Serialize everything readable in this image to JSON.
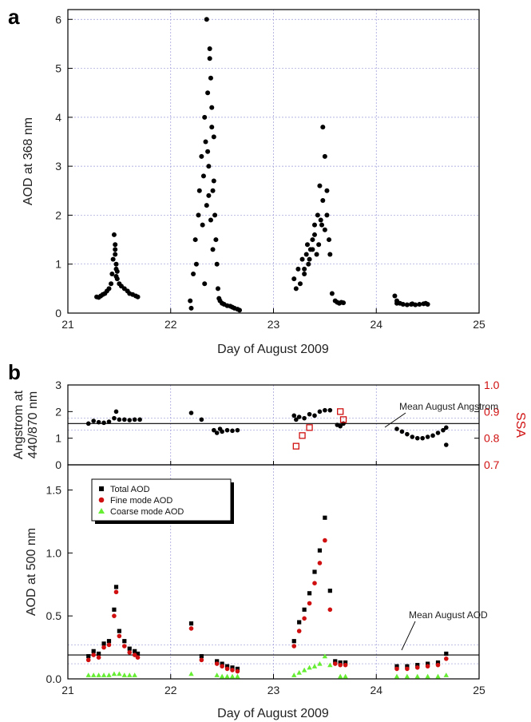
{
  "chart_data": [
    {
      "panel": "a",
      "type": "scatter",
      "xlabel": "Day of August 2009",
      "ylabel": "AOD at 368 nm",
      "xlim": [
        21,
        25
      ],
      "ylim": [
        0,
        6.2
      ],
      "xticks": [
        "21",
        "22",
        "23",
        "24",
        "25"
      ],
      "yticks": [
        "0",
        "1",
        "2",
        "3",
        "4",
        "5",
        "6"
      ],
      "grid": true,
      "series": [
        {
          "color": "#000000",
          "marker": "circle",
          "x": [
            21.28,
            21.3,
            21.32,
            21.34,
            21.36,
            21.38,
            21.4,
            21.42,
            21.43,
            21.44,
            21.45,
            21.46,
            21.47,
            21.48,
            21.5,
            21.52,
            21.55,
            21.58,
            21.6,
            21.63,
            21.66,
            21.68,
            21.46,
            21.47,
            21.47,
            21.46,
            21.48,
            22.19,
            22.2,
            22.22,
            22.24,
            22.25,
            22.27,
            22.28,
            22.3,
            22.31,
            22.32,
            22.33,
            22.34,
            22.35,
            22.36,
            22.37,
            22.38,
            22.39,
            22.4,
            22.41,
            22.42,
            22.43,
            22.44,
            22.45,
            22.46,
            22.35,
            22.38,
            22.4,
            22.36,
            22.42,
            22.39,
            22.37,
            22.41,
            22.33,
            22.47,
            22.48,
            22.5,
            22.52,
            22.55,
            22.58,
            22.6,
            22.62,
            22.65,
            22.67,
            23.2,
            23.22,
            23.24,
            23.26,
            23.28,
            23.3,
            23.32,
            23.34,
            23.36,
            23.38,
            23.4,
            23.42,
            23.44,
            23.46,
            23.48,
            23.5,
            23.52,
            23.54,
            23.3,
            23.35,
            23.4,
            23.45,
            23.5,
            23.33,
            23.43,
            23.48,
            23.52,
            23.38,
            23.47,
            23.55,
            23.57,
            23.6,
            23.62,
            23.64,
            23.66,
            23.68,
            24.18,
            24.2,
            24.23,
            24.26,
            24.3,
            24.34,
            24.38,
            24.42,
            24.46,
            24.5,
            24.2,
            24.35,
            24.48
          ],
          "y": [
            0.33,
            0.32,
            0.35,
            0.38,
            0.4,
            0.45,
            0.5,
            0.6,
            0.8,
            1.1,
            1.6,
            1.3,
            0.9,
            0.7,
            0.6,
            0.55,
            0.5,
            0.45,
            0.4,
            0.38,
            0.35,
            0.33,
            1.4,
            1.0,
            0.75,
            1.2,
            0.85,
            0.25,
            0.1,
            0.8,
            1.5,
            1.0,
            2.0,
            2.5,
            3.2,
            1.8,
            2.8,
            4.0,
            3.5,
            2.2,
            4.5,
            3.0,
            5.4,
            4.8,
            3.8,
            2.5,
            3.6,
            2.0,
            1.5,
            1.0,
            0.5,
            6.0,
            5.2,
            4.2,
            3.3,
            2.7,
            1.9,
            2.4,
            1.3,
            0.6,
            0.3,
            0.25,
            0.2,
            0.18,
            0.15,
            0.14,
            0.12,
            0.1,
            0.08,
            0.06,
            0.7,
            0.5,
            0.9,
            0.6,
            1.1,
            0.8,
            1.2,
            1.0,
            1.3,
            1.5,
            1.6,
            1.2,
            1.4,
            1.9,
            2.3,
            1.7,
            2.0,
            1.5,
            0.9,
            1.1,
            1.8,
            2.6,
            3.2,
            1.4,
            2.0,
            3.8,
            2.5,
            1.3,
            1.8,
            1.2,
            0.4,
            0.25,
            0.22,
            0.2,
            0.22,
            0.21,
            0.35,
            0.25,
            0.2,
            0.18,
            0.17,
            0.18,
            0.17,
            0.18,
            0.19,
            0.18,
            0.2,
            0.19,
            0.2
          ]
        }
      ]
    },
    {
      "panel": "b-top",
      "type": "scatter",
      "ylabel": "Angstrom at 440/870 nm",
      "ylabel_lines": [
        "Angstrom at",
        "440/870 nm"
      ],
      "y2label": "SSA",
      "xlim": [
        21,
        25
      ],
      "ylim": [
        0,
        3
      ],
      "y2lim": [
        0.7,
        1.0
      ],
      "yticks": [
        "0",
        "1",
        "2",
        "3"
      ],
      "y2ticks": [
        "0.7",
        "0.8",
        "0.9",
        "1.0"
      ],
      "annotations": [
        "Mean August Angstrom"
      ],
      "mean_angstrom": 1.55,
      "series": [
        {
          "color": "#000000",
          "marker": "circle",
          "x": [
            21.2,
            21.25,
            21.3,
            21.35,
            21.4,
            21.45,
            21.47,
            21.5,
            21.55,
            21.6,
            21.65,
            21.7,
            22.2,
            22.3,
            22.42,
            22.45,
            22.48,
            22.5,
            22.55,
            22.6,
            22.65,
            23.2,
            23.22,
            23.25,
            23.3,
            23.35,
            23.4,
            23.45,
            23.5,
            23.55,
            23.62,
            23.65,
            23.68,
            24.2,
            24.25,
            24.3,
            24.35,
            24.4,
            24.45,
            24.5,
            24.55,
            24.6,
            24.65,
            24.68,
            24.68
          ],
          "y": [
            1.55,
            1.65,
            1.6,
            1.58,
            1.62,
            1.75,
            2.0,
            1.7,
            1.7,
            1.68,
            1.7,
            1.7,
            1.95,
            1.7,
            1.3,
            1.2,
            1.35,
            1.25,
            1.3,
            1.28,
            1.3,
            1.85,
            1.7,
            1.8,
            1.75,
            1.9,
            1.85,
            2.0,
            2.05,
            2.05,
            1.5,
            1.45,
            1.55,
            1.35,
            1.25,
            1.15,
            1.05,
            1.0,
            1.0,
            1.05,
            1.1,
            1.2,
            1.3,
            1.4,
            0.75
          ]
        },
        {
          "color": "#d01010",
          "marker": "open-square",
          "x": [
            23.22,
            23.28,
            23.35,
            23.65,
            23.68
          ],
          "y2": [
            0.77,
            0.81,
            0.84,
            0.9,
            0.87
          ]
        }
      ]
    },
    {
      "panel": "b-bottom",
      "type": "scatter",
      "xlabel": "Day of August 2009",
      "ylabel": "AOD at 500 nm",
      "xlim": [
        21,
        25
      ],
      "ylim": [
        0,
        1.7
      ],
      "xticks": [
        "21",
        "22",
        "23",
        "24",
        "25"
      ],
      "yticks": [
        "0.0",
        "0.5",
        "1.0",
        "1.5"
      ],
      "annotations": [
        "Mean August AOD"
      ],
      "mean_aod": 0.19,
      "legend_position": "top-left",
      "series": [
        {
          "name": "Total AOD",
          "color": "#000000",
          "marker": "square",
          "x": [
            21.2,
            21.25,
            21.3,
            21.35,
            21.4,
            21.45,
            21.47,
            21.5,
            21.55,
            21.6,
            21.65,
            21.68,
            22.2,
            22.3,
            22.45,
            22.5,
            22.55,
            22.6,
            22.65,
            23.2,
            23.25,
            23.3,
            23.35,
            23.4,
            23.45,
            23.5,
            23.55,
            23.6,
            23.65,
            23.7,
            24.2,
            24.3,
            24.4,
            24.5,
            24.6,
            24.68
          ],
          "y": [
            0.18,
            0.22,
            0.2,
            0.28,
            0.3,
            0.55,
            0.73,
            0.38,
            0.3,
            0.24,
            0.22,
            0.2,
            0.44,
            0.18,
            0.14,
            0.12,
            0.1,
            0.09,
            0.08,
            0.3,
            0.45,
            0.55,
            0.68,
            0.85,
            1.02,
            1.28,
            0.7,
            0.14,
            0.13,
            0.13,
            0.1,
            0.1,
            0.11,
            0.12,
            0.13,
            0.2
          ]
        },
        {
          "name": "Fine mode AOD",
          "color": "#d01010",
          "marker": "circle",
          "x": [
            21.2,
            21.25,
            21.3,
            21.35,
            21.4,
            21.45,
            21.47,
            21.5,
            21.55,
            21.6,
            21.65,
            21.68,
            22.2,
            22.3,
            22.45,
            22.5,
            22.55,
            22.6,
            22.65,
            23.2,
            23.25,
            23.3,
            23.35,
            23.4,
            23.45,
            23.5,
            23.55,
            23.6,
            23.65,
            23.7,
            24.2,
            24.3,
            24.4,
            24.5,
            24.6,
            24.68
          ],
          "y": [
            0.15,
            0.19,
            0.17,
            0.25,
            0.27,
            0.5,
            0.69,
            0.34,
            0.26,
            0.21,
            0.19,
            0.17,
            0.4,
            0.15,
            0.12,
            0.1,
            0.08,
            0.07,
            0.06,
            0.26,
            0.38,
            0.48,
            0.6,
            0.76,
            0.92,
            1.1,
            0.55,
            0.12,
            0.11,
            0.11,
            0.08,
            0.08,
            0.09,
            0.1,
            0.11,
            0.16
          ]
        },
        {
          "name": "Coarse mode AOD",
          "color": "#66ee33",
          "marker": "triangle",
          "x": [
            21.2,
            21.25,
            21.3,
            21.35,
            21.4,
            21.45,
            21.5,
            21.55,
            21.6,
            21.65,
            22.2,
            22.45,
            22.5,
            22.55,
            22.6,
            22.65,
            23.2,
            23.25,
            23.3,
            23.35,
            23.4,
            23.45,
            23.5,
            23.55,
            23.65,
            23.7,
            24.2,
            24.3,
            24.4,
            24.5,
            24.6,
            24.68
          ],
          "y": [
            0.03,
            0.03,
            0.03,
            0.03,
            0.03,
            0.04,
            0.04,
            0.03,
            0.03,
            0.03,
            0.04,
            0.03,
            0.02,
            0.02,
            0.02,
            0.02,
            0.03,
            0.05,
            0.07,
            0.09,
            0.1,
            0.12,
            0.18,
            0.11,
            0.02,
            0.02,
            0.02,
            0.02,
            0.02,
            0.02,
            0.02,
            0.03
          ]
        }
      ]
    }
  ],
  "labels": {
    "panel_a": "a",
    "panel_b": "b"
  }
}
